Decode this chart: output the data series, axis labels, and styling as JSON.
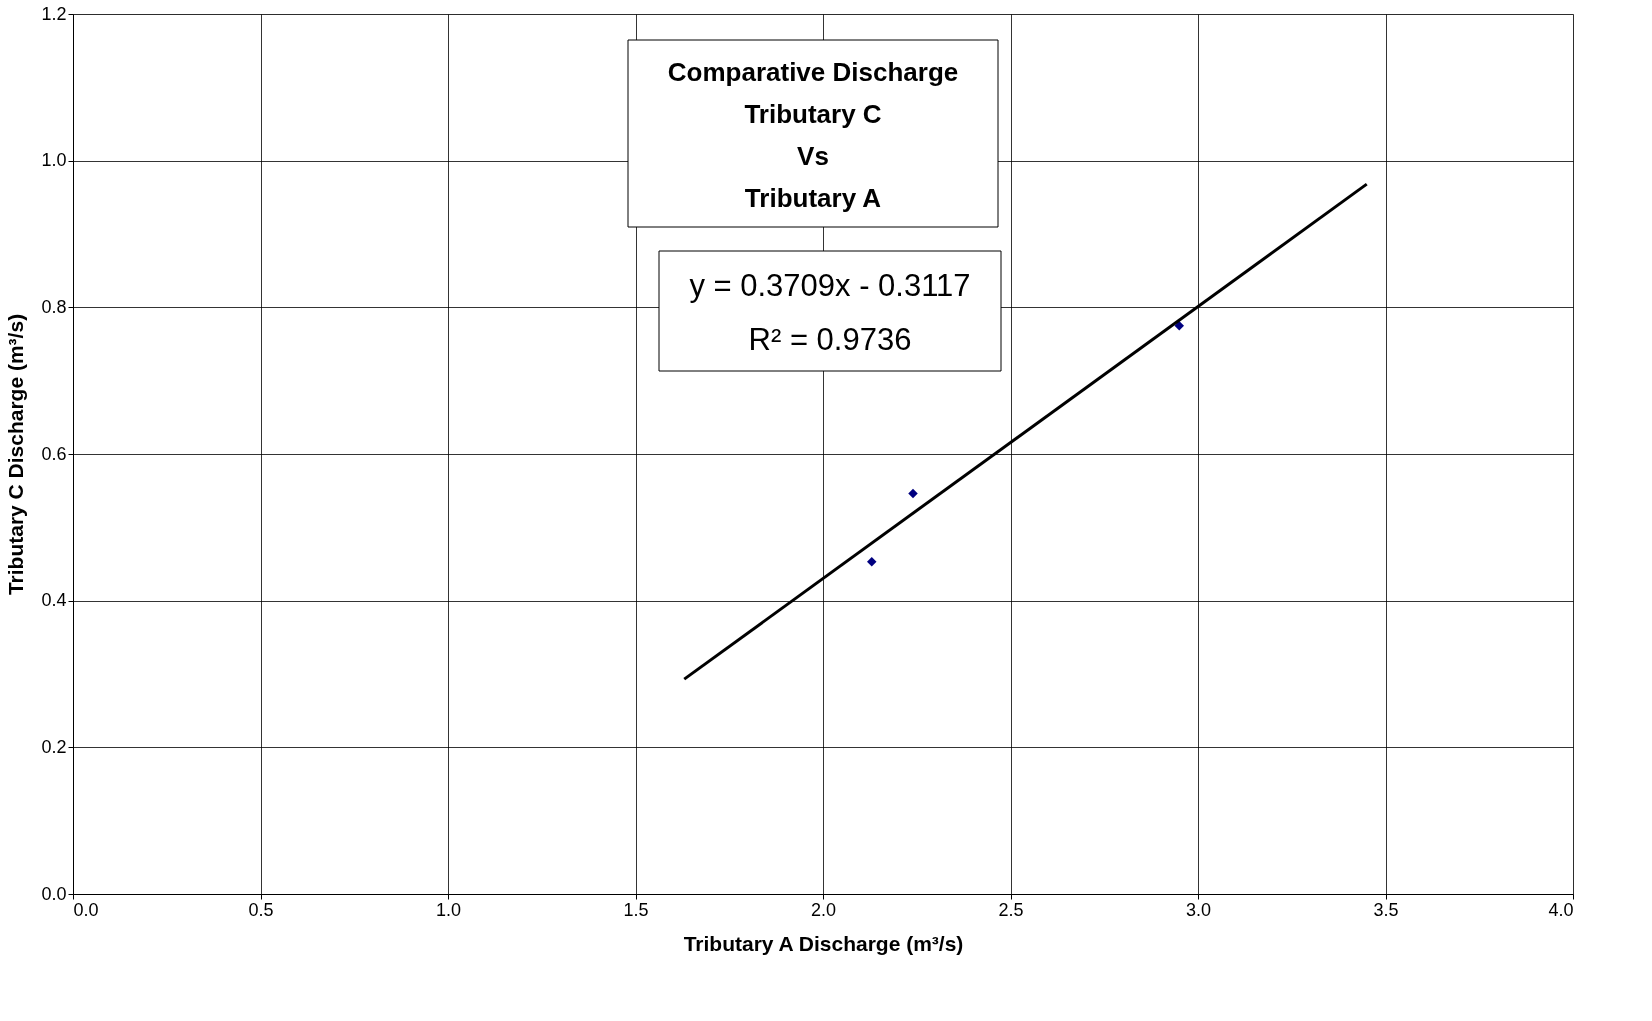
{
  "chart_data": {
    "type": "scatter",
    "title": "Comparative Discharge\nTributary C\nVs\nTributary A",
    "xlabel": "Tributary A Discharge (m³/s)",
    "ylabel": "Tributary C Discharge (m³/s)",
    "annotations": [
      "y = 0.3709x - 0.3117",
      "R² = 0.9736"
    ],
    "x": [
      2.13,
      2.24,
      2.95
    ],
    "series": [
      {
        "color": "#000080",
        "marker": "diamond",
        "values": [
          0.453,
          0.546,
          0.775
        ]
      },
      {
        "type": "line",
        "color": "#000000",
        "marker": "none",
        "x": [
          1.63,
          3.45
        ],
        "values": [
          0.293,
          0.968
        ]
      }
    ],
    "xlim": [
      0,
      4
    ],
    "ylim": [
      0,
      1.2
    ],
    "xticks": [
      {
        "value": 0,
        "label": "0.0"
      },
      {
        "value": 0.5,
        "label": "0.5"
      },
      {
        "value": 1,
        "label": "1.0"
      },
      {
        "value": 1.5,
        "label": "1.5"
      },
      {
        "value": 2,
        "label": "2.0"
      },
      {
        "value": 2.5,
        "label": "2.5"
      },
      {
        "value": 3,
        "label": "3.0"
      },
      {
        "value": 3.5,
        "label": "3.5"
      },
      {
        "value": 4,
        "label": "4.0"
      }
    ],
    "yticks": [
      {
        "value": 0,
        "label": "0.0"
      },
      {
        "value": 0.2,
        "label": "0.2"
      },
      {
        "value": 0.4,
        "label": "0.4"
      },
      {
        "value": 0.6,
        "label": "0.6"
      },
      {
        "value": 0.8,
        "label": "0.8"
      },
      {
        "value": 1,
        "label": "1.0"
      },
      {
        "value": 1.2,
        "label": "1.2"
      }
    ],
    "grid": true
  }
}
